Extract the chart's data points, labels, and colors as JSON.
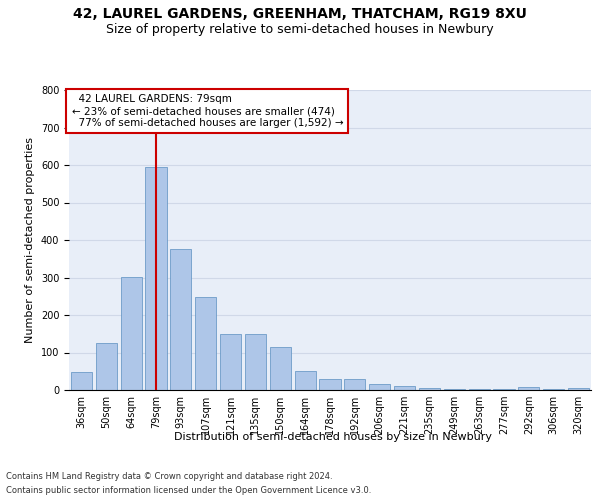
{
  "title": "42, LAUREL GARDENS, GREENHAM, THATCHAM, RG19 8XU",
  "subtitle": "Size of property relative to semi-detached houses in Newbury",
  "xlabel": "Distribution of semi-detached houses by size in Newbury",
  "ylabel": "Number of semi-detached properties",
  "footnote1": "Contains HM Land Registry data © Crown copyright and database right 2024.",
  "footnote2": "Contains public sector information licensed under the Open Government Licence v3.0.",
  "categories": [
    "36sqm",
    "50sqm",
    "64sqm",
    "79sqm",
    "93sqm",
    "107sqm",
    "121sqm",
    "135sqm",
    "150sqm",
    "164sqm",
    "178sqm",
    "192sqm",
    "206sqm",
    "221sqm",
    "235sqm",
    "249sqm",
    "263sqm",
    "277sqm",
    "292sqm",
    "306sqm",
    "320sqm"
  ],
  "values": [
    47,
    125,
    302,
    595,
    377,
    248,
    150,
    150,
    116,
    50,
    29,
    29,
    17,
    12,
    5,
    2,
    2,
    2,
    8,
    2,
    5
  ],
  "bar_color": "#aec6e8",
  "bar_edge_color": "#5a8fc0",
  "property_size_label": "79sqm",
  "property_name": "42 LAUREL GARDENS",
  "pct_smaller": 23,
  "pct_larger": 77,
  "n_smaller": 474,
  "n_larger": 1592,
  "red_line_color": "#cc0000",
  "annotation_box_color": "#cc0000",
  "ylim": [
    0,
    800
  ],
  "yticks": [
    0,
    100,
    200,
    300,
    400,
    500,
    600,
    700,
    800
  ],
  "grid_color": "#d0d8e8",
  "bg_color": "#e8eef8",
  "title_fontsize": 10,
  "subtitle_fontsize": 9,
  "axis_label_fontsize": 8,
  "tick_fontsize": 7,
  "annotation_fontsize": 7.5,
  "footnote_fontsize": 6
}
